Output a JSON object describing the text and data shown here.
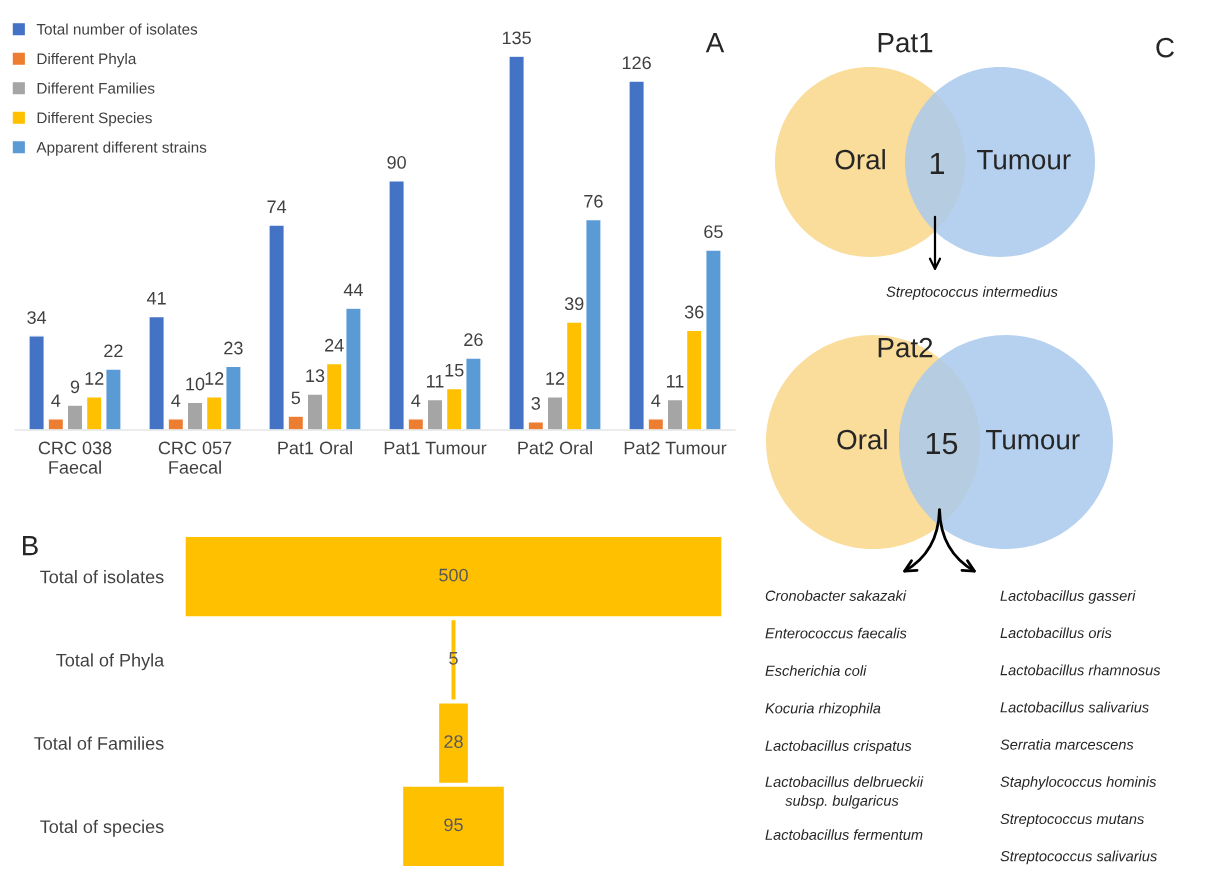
{
  "chart_data": [
    {
      "type": "bar",
      "categories": [
        "CRC 038\nFaecal",
        "CRC 057\nFaecal",
        "Pat1 Oral",
        "Pat1 Tumour",
        "Pat2 Oral",
        "Pat2 Tumour"
      ],
      "series": [
        {
          "name": "Total number of isolates",
          "color": "#4472c4",
          "values": [
            34,
            41,
            74,
            90,
            135,
            126
          ]
        },
        {
          "name": "Different Phyla",
          "color": "#ed7d31",
          "values": [
            4,
            4,
            5,
            4,
            3,
            4
          ]
        },
        {
          "name": "Different Families",
          "color": "#a5a5a5",
          "values": [
            9,
            10,
            13,
            11,
            12,
            11
          ]
        },
        {
          "name": "Different Species",
          "color": "#ffc000",
          "values": [
            12,
            12,
            24,
            15,
            39,
            36
          ]
        },
        {
          "name": "Apparent different strains",
          "color": "#5b9bd5",
          "values": [
            22,
            23,
            44,
            26,
            76,
            65
          ]
        }
      ],
      "data_labels": true,
      "legend": "top left",
      "annotations": [
        "A"
      ]
    },
    {
      "type": "other",
      "categories": [
        "Total of isolates",
        "Total of Phyla",
        "Total of Families",
        "Total of species"
      ],
      "series": [
        {
          "color": "#ffc000",
          "values": [
            500,
            5,
            28,
            95
          ]
        }
      ],
      "data_labels": true,
      "annotations": [
        "B"
      ]
    },
    {
      "type": "other",
      "title": "Pat1",
      "categories": [
        "Oral",
        "Tumour"
      ],
      "colors": [
        "#f9d68a",
        "#a9c9ec"
      ],
      "annotations": [
        "C",
        "1",
        "Streptococcus intermedius"
      ]
    },
    {
      "type": "other",
      "title": "Pat2",
      "categories": [
        "Oral",
        "Tumour"
      ],
      "colors": [
        "#f9d68a",
        "#a9c9ec"
      ],
      "annotations": [
        "15",
        "Cronobacter sakazaki",
        "Enterococcus faecalis",
        "Escherichia coli",
        "Kocuria rhizophila",
        "Lactobacillus crispatus",
        "Lactobacillus delbrueckii\n     subsp. bulgaricus",
        "Lactobacillus fermentum",
        "Lactobacillus gasseri",
        "Lactobacillus oris",
        "Lactobacillus rhamnosus",
        "Lactobacillus salivarius",
        "Serratia marcescens",
        "Staphylococcus hominis",
        "Streptococcus mutans",
        "Streptococcus salivarius"
      ]
    }
  ]
}
